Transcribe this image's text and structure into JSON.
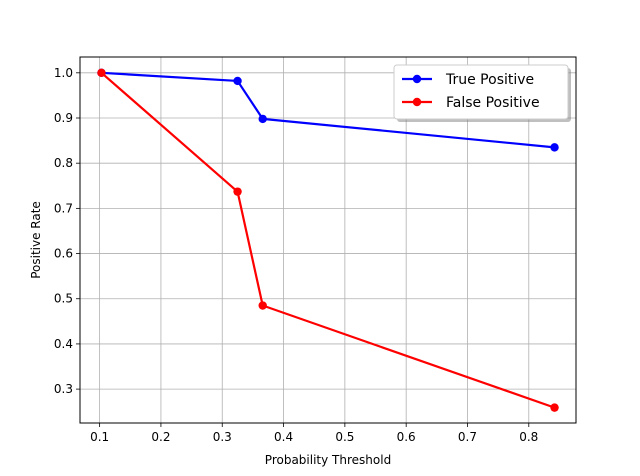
{
  "chart_data": {
    "type": "line",
    "title": "",
    "xlabel": "Probability Threshold",
    "ylabel": "Positive Rate",
    "xlim": [
      0.068,
      0.877
    ],
    "ylim": [
      0.225,
      1.035
    ],
    "xticks": [
      0.1,
      0.2,
      0.3,
      0.4,
      0.5,
      0.6,
      0.7,
      0.8
    ],
    "xtick_labels": [
      "0.1",
      "0.2",
      "0.3",
      "0.4",
      "0.5",
      "0.6",
      "0.7",
      "0.8"
    ],
    "yticks": [
      0.3,
      0.4,
      0.5,
      0.6,
      0.7,
      0.8,
      0.9,
      1.0
    ],
    "ytick_labels": [
      "0.3",
      "0.4",
      "0.5",
      "0.6",
      "0.7",
      "0.8",
      "0.9",
      "1.0"
    ],
    "grid": true,
    "legend_position": "top-right",
    "series": [
      {
        "name": "True Positive",
        "color": "#0000ff",
        "x": [
          0.103,
          0.325,
          0.366,
          0.842
        ],
        "y": [
          1.0,
          0.982,
          0.898,
          0.835
        ]
      },
      {
        "name": "False Positive",
        "color": "#ff0000",
        "x": [
          0.103,
          0.325,
          0.366,
          0.842
        ],
        "y": [
          1.0,
          0.737,
          0.485,
          0.259
        ]
      }
    ]
  }
}
